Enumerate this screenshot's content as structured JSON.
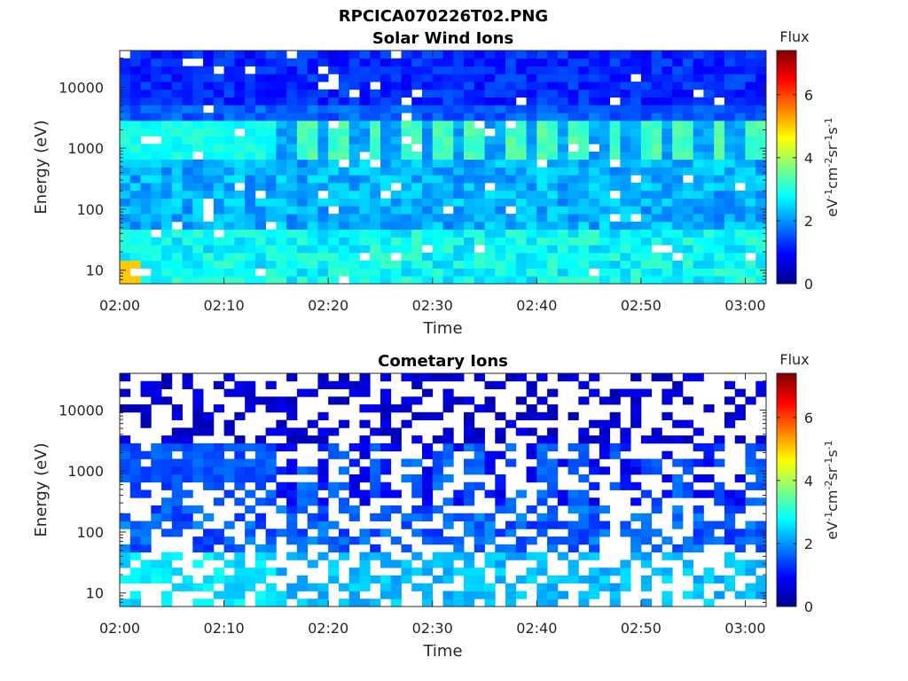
{
  "figure_title": "RPCICA070226T02.PNG",
  "chart_data": [
    {
      "type": "heatmap",
      "title": "Solar Wind Ions",
      "xlabel": "Time",
      "ylabel": "Energy (eV)",
      "x_ticks": [
        "02:00",
        "02:10",
        "02:20",
        "02:30",
        "02:40",
        "02:50",
        "03:00"
      ],
      "x_range": [
        "02:00",
        "03:02"
      ],
      "y_scale": "log",
      "y_ticks": [
        10,
        100,
        1000,
        10000
      ],
      "y_range": [
        6,
        40000
      ],
      "colorbar": {
        "title": "Flux",
        "label": "eV-1cm-2sr-1s-1",
        "ticks": [
          0,
          2,
          4,
          6
        ],
        "range": [
          0,
          7.4
        ],
        "colormap": "jet"
      },
      "description_values": {
        "low_energy_flux_10_50eV": 2.8,
        "peak_band_flux_1000_2500eV": 3.3,
        "peak_band_energy_eV": 1500,
        "quiet_period_before_0214_flux": 2.0,
        "high_energy_flux_above_5000eV": 1.2,
        "max_flux_near_0201_10eV": 5.0,
        "periodic_pulse_period_min": 3.3
      }
    },
    {
      "type": "heatmap",
      "title": "Cometary Ions",
      "xlabel": "Time",
      "ylabel": "Energy (eV)",
      "x_ticks": [
        "02:00",
        "02:10",
        "02:20",
        "02:30",
        "02:40",
        "02:50",
        "03:00"
      ],
      "x_range": [
        "02:00",
        "03:02"
      ],
      "y_scale": "log",
      "y_ticks": [
        10,
        100,
        1000,
        10000
      ],
      "y_range": [
        6,
        40000
      ],
      "colorbar": {
        "title": "Flux",
        "label": "eV-1cm-2sr-1s-1",
        "ticks": [
          0,
          2,
          4,
          6
        ],
        "range": [
          0,
          7.4
        ],
        "colormap": "jet"
      },
      "description_values": {
        "low_energy_flux_10_50eV": 2.3,
        "band_flux_1000_2500eV": 1.6,
        "high_energy_flux_above_5000eV": 0.6,
        "sparsity": 0.45
      }
    }
  ]
}
